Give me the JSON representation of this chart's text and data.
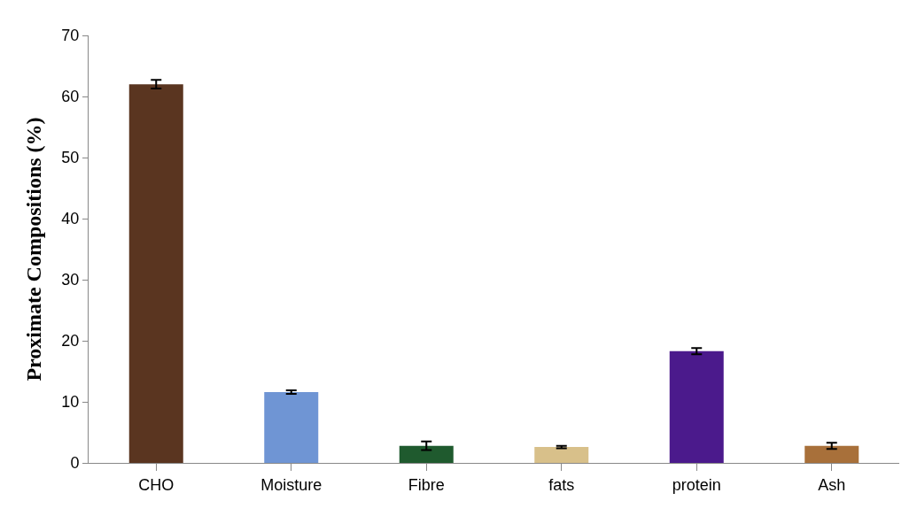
{
  "chart_data": {
    "type": "bar",
    "ylabel": "Proximate Compositions (%)",
    "categories": [
      "CHO",
      "Moisture",
      "Fibre",
      "fats",
      "protein",
      "Ash"
    ],
    "values": [
      62.0,
      11.6,
      2.8,
      2.6,
      18.3,
      2.8
    ],
    "errors": [
      0.7,
      0.3,
      0.7,
      0.2,
      0.5,
      0.5
    ],
    "colors": [
      "#5a3520",
      "#6f95d4",
      "#1f5a2e",
      "#d8c08a",
      "#4b1a8c",
      "#a8703a"
    ],
    "ylim": [
      0,
      70
    ],
    "yticks": [
      0,
      10,
      20,
      30,
      40,
      50,
      60,
      70
    ]
  }
}
